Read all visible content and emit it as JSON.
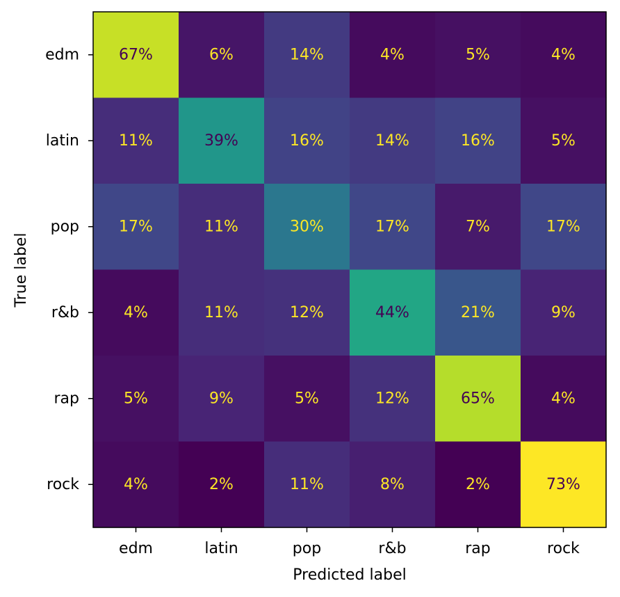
{
  "chart_data": {
    "type": "heatmap",
    "title": "",
    "xlabel": "Predicted label",
    "ylabel": "True label",
    "x_categories": [
      "edm",
      "latin",
      "pop",
      "r&b",
      "rap",
      "rock"
    ],
    "y_categories": [
      "edm",
      "latin",
      "pop",
      "r&b",
      "rap",
      "rock"
    ],
    "values": [
      [
        67,
        6,
        14,
        4,
        5,
        4
      ],
      [
        11,
        39,
        16,
        14,
        16,
        5
      ],
      [
        17,
        11,
        30,
        17,
        7,
        17
      ],
      [
        4,
        11,
        12,
        44,
        21,
        9
      ],
      [
        5,
        9,
        5,
        12,
        65,
        4
      ],
      [
        4,
        2,
        11,
        8,
        2,
        73
      ]
    ],
    "cell_labels": [
      [
        "67%",
        "6%",
        "14%",
        "4%",
        "5%",
        "4%"
      ],
      [
        "11%",
        "39%",
        "16%",
        "14%",
        "16%",
        "5%"
      ],
      [
        "17%",
        "11%",
        "30%",
        "17%",
        "7%",
        "17%"
      ],
      [
        "4%",
        "11%",
        "12%",
        "44%",
        "21%",
        "9%"
      ],
      [
        "5%",
        "9%",
        "5%",
        "12%",
        "65%",
        "4%"
      ],
      [
        "4%",
        "2%",
        "11%",
        "8%",
        "2%",
        "73%"
      ]
    ],
    "colormap": "viridis",
    "value_range": [
      2,
      73
    ],
    "text_colors": {
      "on_dark": "#fde725",
      "on_light": "#440154"
    }
  }
}
